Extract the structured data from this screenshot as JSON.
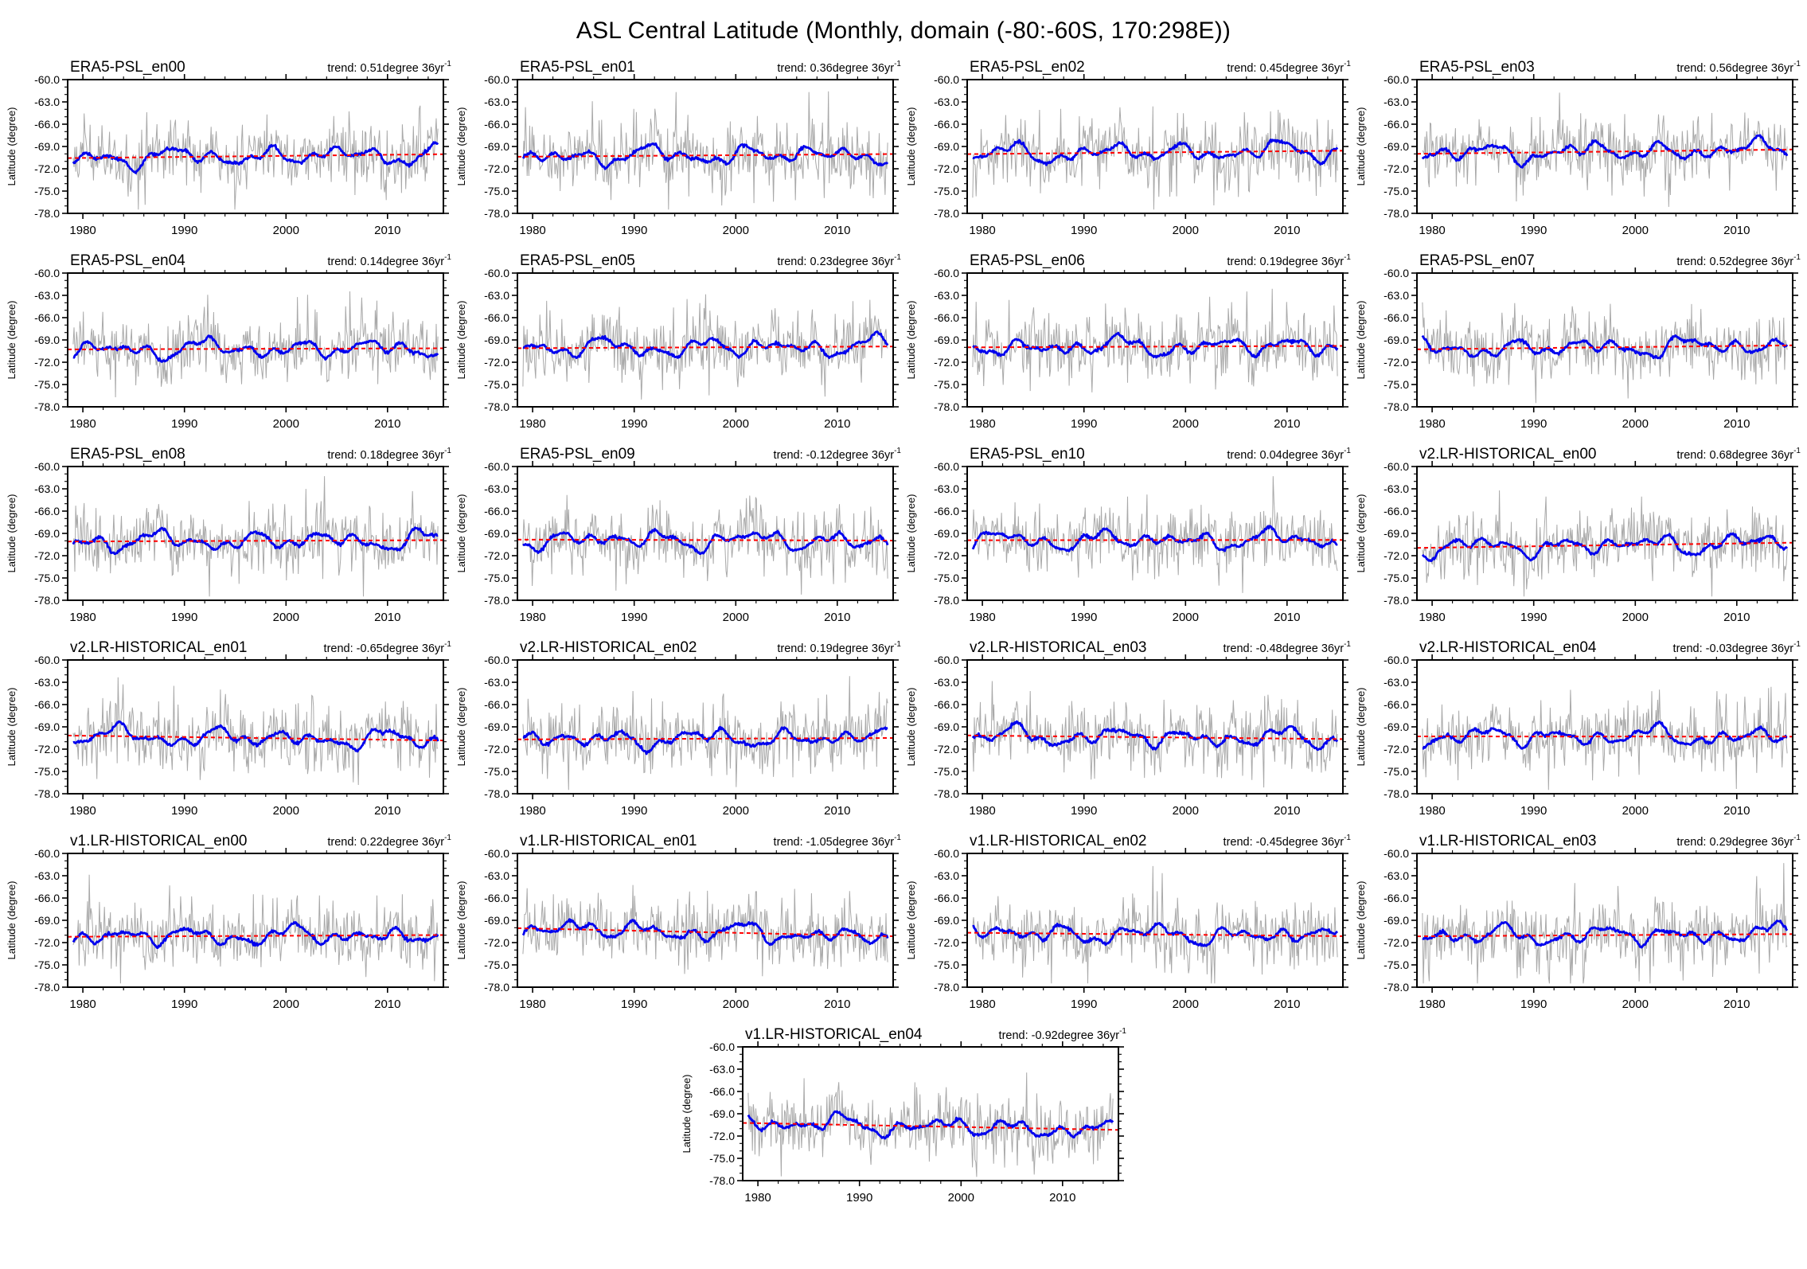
{
  "figure": {
    "title": "ASL Central Latitude (Monthly, domain (-80:-60S, 170:298E))"
  },
  "chart_data": {
    "type": "line",
    "title": "ASL Central Latitude (Monthly, domain (-80:-60S, 170:298E))",
    "layout": {
      "columns": 4,
      "rows": 6,
      "panel_count": 21,
      "last_panel_centered": true,
      "legend": "none",
      "grid": "off"
    },
    "axes": {
      "ylabel": "Latitude (degree)",
      "ylim": [
        -78.0,
        -60.0
      ],
      "yticks": [
        -60.0,
        -63.0,
        -66.0,
        -69.0,
        -72.0,
        -75.0,
        -78.0
      ],
      "ytick_labels": [
        "-60.0",
        "-63.0",
        "-66.0",
        "-69.0",
        "-72.0",
        "-75.0",
        "-78.0"
      ],
      "y_minor_step": 1.0,
      "xlim": [
        1978.5,
        2015.5
      ],
      "xticks": [
        1980,
        1990,
        2000,
        2010
      ],
      "xtick_labels": [
        "1980",
        "1990",
        "2000",
        "2010"
      ],
      "x_minor_step": 2,
      "x_data_start": 1979,
      "x_data_end": 2015,
      "sampling": "monthly"
    },
    "series_style": [
      {
        "name": "monthly-raw",
        "color": "#a9a9a9",
        "width": 1
      },
      {
        "name": "smoothed",
        "color": "#0000ee",
        "width": 2.8
      },
      {
        "name": "linear-trend",
        "color": "#ff0000",
        "width": 2,
        "dash": "dashed"
      }
    ],
    "trend_label_format": {
      "prefix": "trend: ",
      "suffix": "degree 36yr",
      "superscript": "-1"
    },
    "panels": [
      {
        "title": "ERA5-PSL_en00",
        "trend": "0.51",
        "trend_value": 0.51,
        "mean_latitude": -70.3
      },
      {
        "title": "ERA5-PSL_en01",
        "trend": "0.36",
        "trend_value": 0.36,
        "mean_latitude": -70.2
      },
      {
        "title": "ERA5-PSL_en02",
        "trend": "0.45",
        "trend_value": 0.45,
        "mean_latitude": -69.8
      },
      {
        "title": "ERA5-PSL_en03",
        "trend": "0.56",
        "trend_value": 0.56,
        "mean_latitude": -69.7
      },
      {
        "title": "ERA5-PSL_en04",
        "trend": "0.14",
        "trend_value": 0.14,
        "mean_latitude": -70.2
      },
      {
        "title": "ERA5-PSL_en05",
        "trend": "0.23",
        "trend_value": 0.23,
        "mean_latitude": -70.0
      },
      {
        "title": "ERA5-PSL_en06",
        "trend": "0.19",
        "trend_value": 0.19,
        "mean_latitude": -69.9
      },
      {
        "title": "ERA5-PSL_en07",
        "trend": "0.52",
        "trend_value": 0.52,
        "mean_latitude": -70.0
      },
      {
        "title": "ERA5-PSL_en08",
        "trend": "0.18",
        "trend_value": 0.18,
        "mean_latitude": -70.0
      },
      {
        "title": "ERA5-PSL_en09",
        "trend": "-0.12",
        "trend_value": -0.12,
        "mean_latitude": -69.9
      },
      {
        "title": "ERA5-PSL_en10",
        "trend": "0.04",
        "trend_value": 0.04,
        "mean_latitude": -69.9
      },
      {
        "title": "v2.LR-HISTORICAL_en00",
        "trend": "0.68",
        "trend_value": 0.68,
        "mean_latitude": -70.6
      },
      {
        "title": "v2.LR-HISTORICAL_en01",
        "trend": "-0.65",
        "trend_value": -0.65,
        "mean_latitude": -70.5
      },
      {
        "title": "v2.LR-HISTORICAL_en02",
        "trend": "0.19",
        "trend_value": 0.19,
        "mean_latitude": -70.6
      },
      {
        "title": "v2.LR-HISTORICAL_en03",
        "trend": "-0.48",
        "trend_value": -0.48,
        "mean_latitude": -70.4
      },
      {
        "title": "v2.LR-HISTORICAL_en04",
        "trend": "-0.03",
        "trend_value": -0.03,
        "mean_latitude": -70.3
      },
      {
        "title": "v1.LR-HISTORICAL_en00",
        "trend": "0.22",
        "trend_value": 0.22,
        "mean_latitude": -71.1
      },
      {
        "title": "v1.LR-HISTORICAL_en01",
        "trend": "-1.05",
        "trend_value": -1.05,
        "mean_latitude": -70.6
      },
      {
        "title": "v1.LR-HISTORICAL_en02",
        "trend": "-0.45",
        "trend_value": -0.45,
        "mean_latitude": -70.9
      },
      {
        "title": "v1.LR-HISTORICAL_en03",
        "trend": "0.29",
        "trend_value": 0.29,
        "mean_latitude": -71.0
      },
      {
        "title": "v1.LR-HISTORICAL_en04",
        "trend": "-0.92",
        "trend_value": -0.92,
        "mean_latitude": -70.7
      }
    ]
  }
}
